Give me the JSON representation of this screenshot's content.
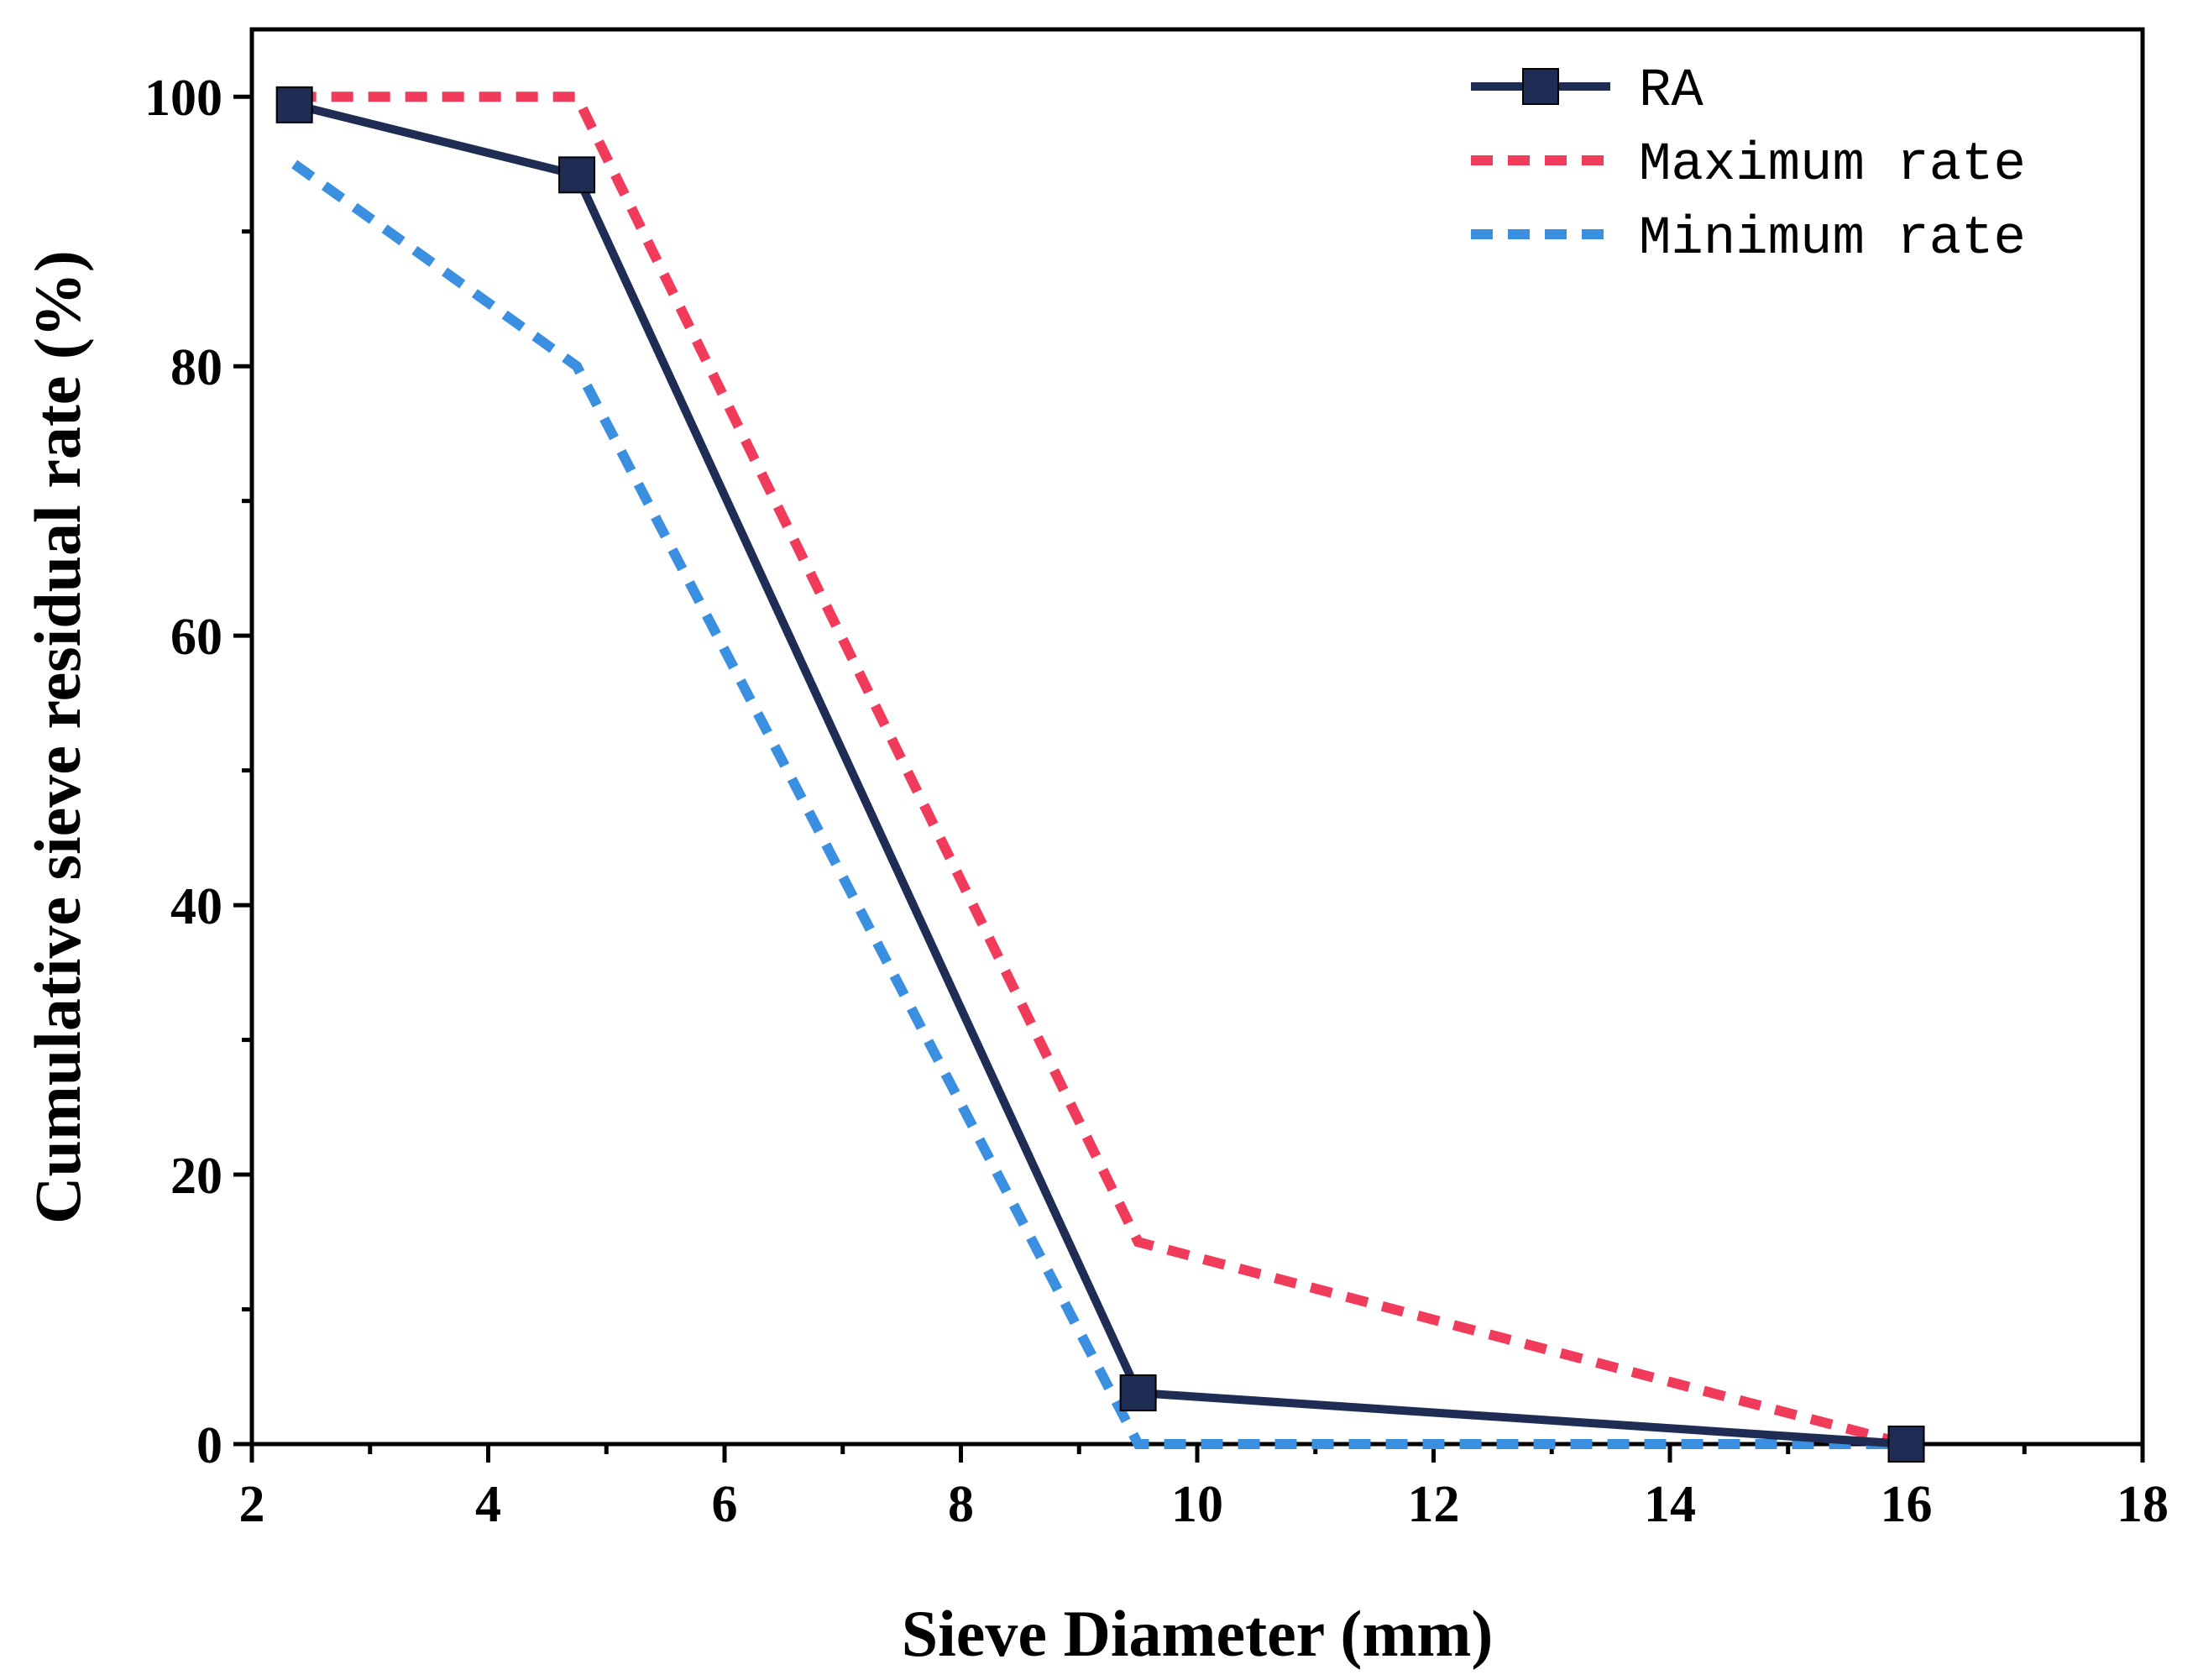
{
  "chart_data": {
    "type": "line",
    "title": "",
    "xlabel": "Sieve Diameter (mm)",
    "ylabel": "Cumulative sieve residual rate (%)",
    "xlim": [
      2,
      18
    ],
    "ylim": [
      0,
      105
    ],
    "x_ticks": [
      "2",
      "4",
      "6",
      "8",
      "10",
      "12",
      "14",
      "16",
      "18"
    ],
    "y_ticks": [
      "0",
      "20",
      "40",
      "60",
      "80",
      "100"
    ],
    "legend_position": "top-right",
    "series": [
      {
        "name": "RA",
        "style": "solid-square-markers",
        "color": "#1f2d55",
        "x": [
          2.36,
          4.75,
          9.5,
          16
        ],
        "y": [
          99.4,
          94.2,
          3.8,
          0
        ]
      },
      {
        "name": "Maximum rate",
        "style": "dashed",
        "color": "#f03c5a",
        "x": [
          2.36,
          4.75,
          9.5,
          16
        ],
        "y": [
          100,
          100,
          15,
          0
        ]
      },
      {
        "name": "Minimum rate",
        "style": "dashed",
        "color": "#3a8fe0",
        "x": [
          2.36,
          4.75,
          9.5,
          16
        ],
        "y": [
          95,
          80,
          0,
          0
        ]
      }
    ]
  }
}
